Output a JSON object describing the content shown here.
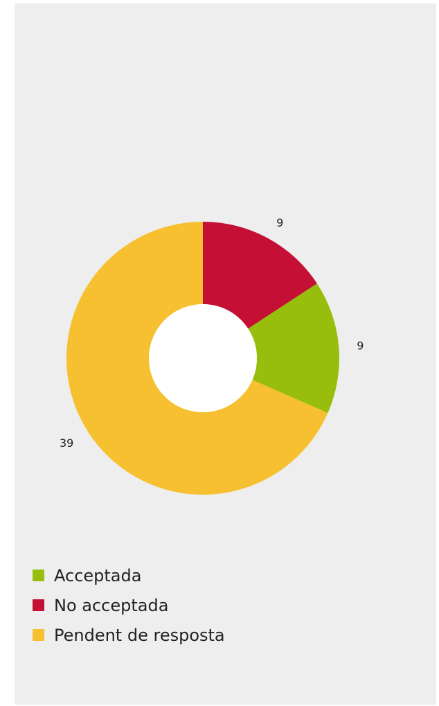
{
  "chart_data": {
    "type": "pie",
    "donut": true,
    "title": "",
    "slices": [
      {
        "label": "No acceptada",
        "value": 9,
        "color": "#C41034"
      },
      {
        "label": "Acceptada",
        "value": 9,
        "color": "#97BE0D"
      },
      {
        "label": "Pendent de resposta",
        "value": 39,
        "color": "#F7C030"
      }
    ],
    "legend": [
      {
        "label": "Acceptada",
        "color": "#97BE0D"
      },
      {
        "label": "No acceptada",
        "color": "#C41034"
      },
      {
        "label": "Pendent de resposta",
        "color": "#F7C030"
      }
    ],
    "legend_position": "bottom-left",
    "background": "#EEEEEE"
  }
}
